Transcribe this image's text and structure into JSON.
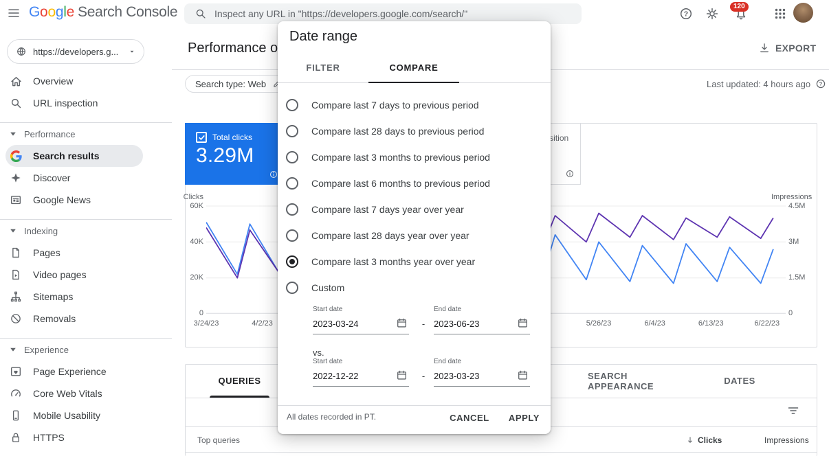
{
  "colors": {
    "accent_blue": "#1a73e8",
    "clicks_line": "#4285f4",
    "impressions_line": "#5e35b1",
    "badge_red": "#d93025"
  },
  "header": {
    "logo_letters": [
      {
        "ch": "G",
        "color": "#4285F4"
      },
      {
        "ch": "o",
        "color": "#EA4335"
      },
      {
        "ch": "o",
        "color": "#FBBC05"
      },
      {
        "ch": "g",
        "color": "#4285F4"
      },
      {
        "ch": "l",
        "color": "#34A853"
      },
      {
        "ch": "e",
        "color": "#EA4335"
      }
    ],
    "logo_suffix": "Search Console",
    "search_placeholder": "Inspect any URL in \"https://developers.google.com/search/\"",
    "notifications_count": "120"
  },
  "sidebar": {
    "property_label": "https://developers.g...",
    "top_items": [
      {
        "label": "Overview"
      },
      {
        "label": "URL inspection"
      }
    ],
    "sections": [
      {
        "label": "Performance",
        "items": [
          {
            "label": "Search results",
            "selected": true
          },
          {
            "label": "Discover"
          },
          {
            "label": "Google News"
          }
        ]
      },
      {
        "label": "Indexing",
        "items": [
          {
            "label": "Pages"
          },
          {
            "label": "Video pages"
          },
          {
            "label": "Sitemaps"
          },
          {
            "label": "Removals"
          }
        ]
      },
      {
        "label": "Experience",
        "items": [
          {
            "label": "Page Experience"
          },
          {
            "label": "Core Web Vitals"
          },
          {
            "label": "Mobile Usability"
          },
          {
            "label": "HTTPS"
          }
        ]
      }
    ]
  },
  "main": {
    "title": "Performance on Search results",
    "export_label": "EXPORT",
    "search_type_chip": "Search type: Web",
    "last_updated": "Last updated: 4 hours ago",
    "cards": {
      "clicks": {
        "label": "Total clicks",
        "value": "3.29M"
      },
      "position": {
        "label": "Average position"
      }
    },
    "tabs": {
      "queries": "QUERIES",
      "search_appearance": "SEARCH APPEARANCE",
      "dates": "DATES"
    },
    "table": {
      "query_col": "Top queries",
      "clicks_col": "Clicks",
      "impressions_col": "Impressions"
    }
  },
  "chart_data": {
    "type": "line",
    "grid": true,
    "legend_position": "none",
    "y_left": {
      "label": "Clicks",
      "ticks": [
        "60K",
        "40K",
        "20K",
        "0"
      ],
      "max": 60000
    },
    "y_right": {
      "label": "Impressions",
      "ticks": [
        "4.5M",
        "3M",
        "1.5M",
        "0"
      ],
      "max": 4500000
    },
    "x_range_days": [
      0,
      93
    ],
    "x_labels": [
      {
        "label": "3/24/23",
        "day": 0
      },
      {
        "label": "4/2/23",
        "day": 9
      },
      {
        "label": "5/26/23",
        "day": 63
      },
      {
        "label": "6/4/23",
        "day": 72
      },
      {
        "label": "6/13/23",
        "day": 81
      },
      {
        "label": "6/22/23",
        "day": 90
      }
    ],
    "series": [
      {
        "name": "Clicks",
        "color": "#4285f4",
        "unit": "thousands",
        "axis_max": 60,
        "x_days": [
          0,
          5,
          7,
          12,
          14,
          19,
          21,
          26,
          28,
          33,
          35,
          40,
          42,
          47,
          49,
          54,
          56,
          61,
          63,
          68,
          70,
          75,
          77,
          82,
          84,
          89,
          91
        ],
        "values": [
          51,
          22,
          50,
          21,
          49,
          23,
          52,
          24,
          50,
          22,
          48,
          21,
          47,
          20,
          46,
          21,
          44,
          19,
          40,
          18,
          38,
          17,
          39,
          18,
          37,
          17,
          36
        ]
      },
      {
        "name": "Impressions",
        "color": "#5e35b1",
        "unit": "millions",
        "axis_max": 4.5,
        "x_days": [
          0,
          5,
          7,
          12,
          14,
          19,
          21,
          26,
          28,
          33,
          35,
          40,
          42,
          47,
          49,
          54,
          56,
          61,
          63,
          68,
          70,
          75,
          77,
          82,
          84,
          89,
          91
        ],
        "values": [
          3.6,
          1.5,
          3.5,
          1.6,
          3.7,
          1.7,
          3.8,
          1.8,
          3.7,
          1.9,
          3.6,
          2.0,
          3.9,
          2.6,
          4.0,
          2.8,
          4.1,
          3.0,
          4.2,
          3.2,
          4.1,
          3.1,
          4.0,
          3.2,
          4.05,
          3.15,
          4.0
        ]
      }
    ]
  },
  "dialog": {
    "title": "Date range",
    "tabs": {
      "filter": "FILTER",
      "compare": "COMPARE"
    },
    "options": [
      {
        "label": "Compare last 7 days to previous period"
      },
      {
        "label": "Compare last 28 days to previous period"
      },
      {
        "label": "Compare last 3 months to previous period"
      },
      {
        "label": "Compare last 6 months to previous period"
      },
      {
        "label": "Compare last 7 days year over year"
      },
      {
        "label": "Compare last 28 days year over year"
      },
      {
        "label": "Compare last 3 months year over year",
        "selected": true
      },
      {
        "label": "Custom"
      }
    ],
    "start_date_label": "Start date",
    "end_date_label": "End date",
    "period1": {
      "start": "2023-03-24",
      "end": "2023-06-23"
    },
    "vs_label": "vs.",
    "period2": {
      "start": "2022-12-22",
      "end": "2023-03-23"
    },
    "footnote": "All dates recorded in PT.",
    "cancel_label": "CANCEL",
    "apply_label": "APPLY"
  }
}
